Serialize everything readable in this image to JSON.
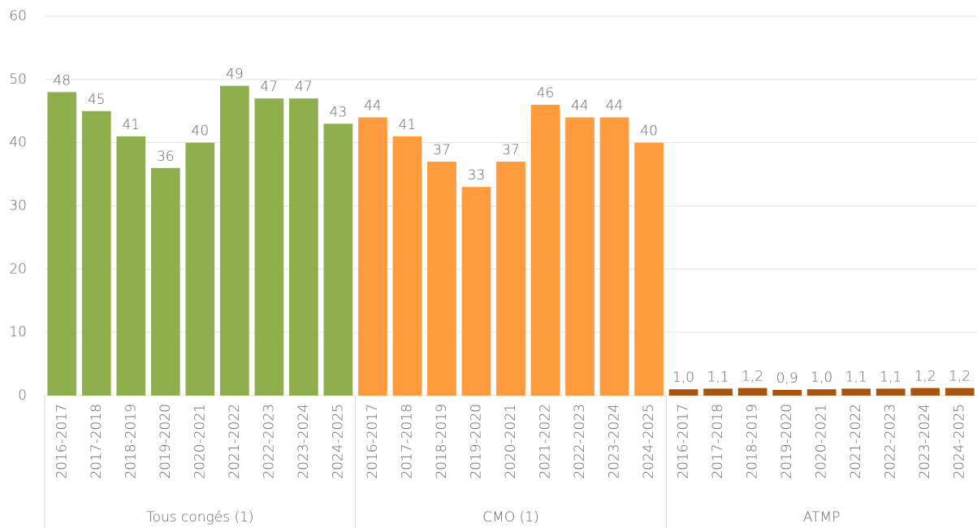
{
  "chart_data": {
    "type": "bar",
    "categories": [
      "2016-2017",
      "2017-2018",
      "2018-2019",
      "2019-2020",
      "2020-2021",
      "2021-2022",
      "2022-2023",
      "2023-2024",
      "2024-2025"
    ],
    "series": [
      {
        "name": "Tous congés (1)",
        "color": "#8fae4e",
        "values": [
          48,
          45,
          41,
          36,
          40,
          49,
          47,
          47,
          43
        ]
      },
      {
        "name": "CMO (1)",
        "color": "#ff9a3d",
        "values": [
          44,
          41,
          37,
          33,
          37,
          46,
          44,
          44,
          40
        ]
      },
      {
        "name": "ATMP",
        "color": "#a9540f",
        "values": [
          1.0,
          1.1,
          1.2,
          0.9,
          1.0,
          1.1,
          1.1,
          1.2,
          1.2
        ],
        "value_labels": [
          "1,0",
          "1,1",
          "1,2",
          "0,9",
          "1,0",
          "1,1",
          "1,1",
          "1,2",
          "1,2"
        ]
      }
    ],
    "ylim": [
      0,
      60
    ],
    "yticks": [
      0,
      10,
      20,
      30,
      40,
      50,
      60
    ],
    "grid": true
  }
}
